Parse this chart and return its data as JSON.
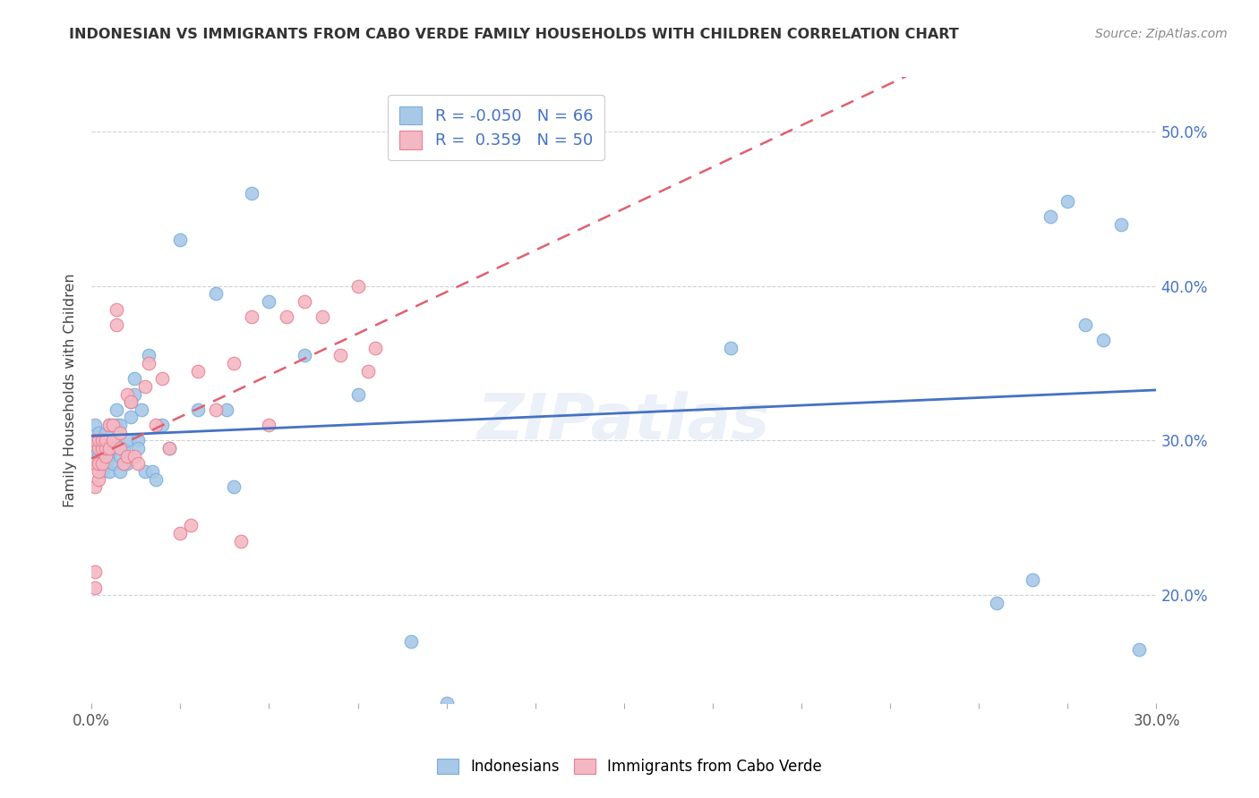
{
  "title": "INDONESIAN VS IMMIGRANTS FROM CABO VERDE FAMILY HOUSEHOLDS WITH CHILDREN CORRELATION CHART",
  "source": "Source: ZipAtlas.com",
  "ylabel": "Family Households with Children",
  "xlim": [
    0.0,
    0.3
  ],
  "ylim": [
    0.13,
    0.535
  ],
  "xticks": [
    0.0,
    0.025,
    0.05,
    0.075,
    0.1,
    0.125,
    0.15,
    0.175,
    0.2,
    0.225,
    0.25,
    0.275,
    0.3
  ],
  "xtick_labels_show": [
    true,
    false,
    false,
    false,
    false,
    false,
    false,
    false,
    false,
    false,
    false,
    false,
    true
  ],
  "yticks": [
    0.2,
    0.3,
    0.4,
    0.5
  ],
  "color_blue": "#a8c8e8",
  "color_pink": "#f4b8c4",
  "edge_blue": "#7aadda",
  "edge_pink": "#e88090",
  "line_blue": "#4472c4",
  "line_pink": "#e06070",
  "background_color": "#ffffff",
  "grid_color": "#d0d0d0",
  "indonesians_x": [
    0.001,
    0.001,
    0.001,
    0.001,
    0.002,
    0.002,
    0.002,
    0.002,
    0.002,
    0.003,
    0.003,
    0.003,
    0.003,
    0.004,
    0.004,
    0.004,
    0.004,
    0.005,
    0.005,
    0.005,
    0.006,
    0.006,
    0.006,
    0.007,
    0.007,
    0.007,
    0.008,
    0.008,
    0.008,
    0.009,
    0.009,
    0.01,
    0.01,
    0.011,
    0.011,
    0.012,
    0.012,
    0.013,
    0.013,
    0.014,
    0.015,
    0.016,
    0.017,
    0.018,
    0.02,
    0.022,
    0.025,
    0.03,
    0.035,
    0.038,
    0.04,
    0.045,
    0.05,
    0.06,
    0.075,
    0.09,
    0.1,
    0.18,
    0.255,
    0.265,
    0.27,
    0.275,
    0.28,
    0.285,
    0.29,
    0.295
  ],
  "indonesians_y": [
    0.295,
    0.3,
    0.29,
    0.31,
    0.285,
    0.29,
    0.3,
    0.305,
    0.285,
    0.28,
    0.29,
    0.3,
    0.295,
    0.285,
    0.295,
    0.305,
    0.285,
    0.28,
    0.29,
    0.31,
    0.295,
    0.3,
    0.285,
    0.31,
    0.32,
    0.295,
    0.31,
    0.29,
    0.28,
    0.295,
    0.285,
    0.285,
    0.3,
    0.315,
    0.325,
    0.33,
    0.34,
    0.3,
    0.295,
    0.32,
    0.28,
    0.355,
    0.28,
    0.275,
    0.31,
    0.295,
    0.43,
    0.32,
    0.395,
    0.32,
    0.27,
    0.46,
    0.39,
    0.355,
    0.33,
    0.17,
    0.13,
    0.36,
    0.195,
    0.21,
    0.445,
    0.455,
    0.375,
    0.365,
    0.44,
    0.165
  ],
  "caboverde_x": [
    0.001,
    0.001,
    0.001,
    0.001,
    0.001,
    0.002,
    0.002,
    0.002,
    0.002,
    0.002,
    0.003,
    0.003,
    0.003,
    0.004,
    0.004,
    0.004,
    0.005,
    0.005,
    0.006,
    0.006,
    0.007,
    0.007,
    0.008,
    0.008,
    0.009,
    0.01,
    0.01,
    0.011,
    0.012,
    0.013,
    0.015,
    0.016,
    0.018,
    0.02,
    0.022,
    0.025,
    0.028,
    0.03,
    0.035,
    0.04,
    0.042,
    0.045,
    0.05,
    0.055,
    0.06,
    0.065,
    0.07,
    0.075,
    0.078,
    0.08
  ],
  "caboverde_y": [
    0.215,
    0.205,
    0.27,
    0.285,
    0.3,
    0.275,
    0.28,
    0.295,
    0.3,
    0.285,
    0.285,
    0.295,
    0.3,
    0.29,
    0.295,
    0.3,
    0.295,
    0.31,
    0.3,
    0.31,
    0.375,
    0.385,
    0.295,
    0.305,
    0.285,
    0.29,
    0.33,
    0.325,
    0.29,
    0.285,
    0.335,
    0.35,
    0.31,
    0.34,
    0.295,
    0.24,
    0.245,
    0.345,
    0.32,
    0.35,
    0.235,
    0.38,
    0.31,
    0.38,
    0.39,
    0.38,
    0.355,
    0.4,
    0.345,
    0.36
  ]
}
